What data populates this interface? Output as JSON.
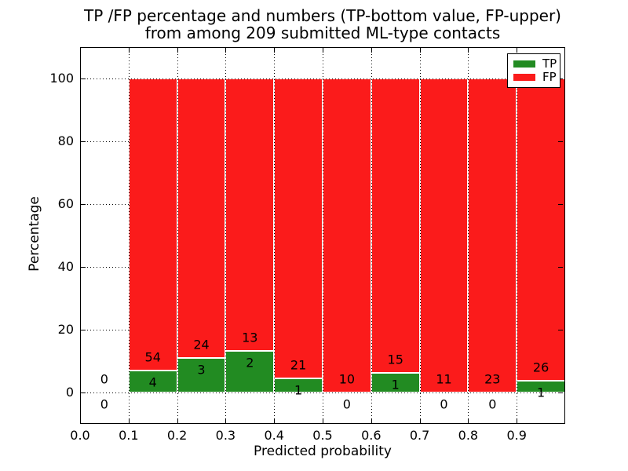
{
  "chart_data": {
    "type": "bar",
    "variant": "stacked-percentage-histogram",
    "title_line1": "TP /FP percentage and numbers (TP-bottom value, FP-upper)",
    "title_line2": "from among 209 submitted ML-type contacts",
    "xlabel": "Predicted probability",
    "ylabel": "Percentage",
    "total_contacts": 209,
    "xlim": [
      0.0,
      1.0
    ],
    "ylim": [
      -10,
      110
    ],
    "xtick_labels": [
      "0.0",
      "0.1",
      "0.2",
      "0.3",
      "0.4",
      "0.5",
      "0.6",
      "0.7",
      "0.8",
      "0.9"
    ],
    "ytick_values": [
      0,
      20,
      40,
      60,
      80,
      100
    ],
    "grid": "dotted",
    "colors": {
      "tp": "#228b22",
      "fp": "#fb1b1b",
      "bar_edge": "#ffffff",
      "grid": "#000000",
      "background": "#ffffff"
    },
    "legend": {
      "position": "upper-right",
      "entries": [
        {
          "name": "TP",
          "color_key": "tp"
        },
        {
          "name": "FP",
          "color_key": "fp"
        }
      ]
    },
    "bins": [
      {
        "x_start": 0.0,
        "x_end": 0.1,
        "tp": 0,
        "fp": 0,
        "tp_pct": 0,
        "fp_pct": 0
      },
      {
        "x_start": 0.1,
        "x_end": 0.2,
        "tp": 4,
        "fp": 54,
        "tp_pct": 6.9,
        "fp_pct": 93.1
      },
      {
        "x_start": 0.2,
        "x_end": 0.3,
        "tp": 3,
        "fp": 24,
        "tp_pct": 11.11,
        "fp_pct": 88.89
      },
      {
        "x_start": 0.3,
        "x_end": 0.4,
        "tp": 2,
        "fp": 13,
        "tp_pct": 13.33,
        "fp_pct": 86.67
      },
      {
        "x_start": 0.4,
        "x_end": 0.5,
        "tp": 1,
        "fp": 21,
        "tp_pct": 4.55,
        "fp_pct": 95.45
      },
      {
        "x_start": 0.5,
        "x_end": 0.6,
        "tp": 0,
        "fp": 10,
        "tp_pct": 0,
        "fp_pct": 100
      },
      {
        "x_start": 0.6,
        "x_end": 0.7,
        "tp": 1,
        "fp": 15,
        "tp_pct": 6.25,
        "fp_pct": 93.75
      },
      {
        "x_start": 0.7,
        "x_end": 0.8,
        "tp": 0,
        "fp": 11,
        "tp_pct": 0,
        "fp_pct": 100
      },
      {
        "x_start": 0.8,
        "x_end": 0.9,
        "tp": 0,
        "fp": 23,
        "tp_pct": 0,
        "fp_pct": 100
      },
      {
        "x_start": 0.9,
        "x_end": 1.0,
        "tp": 1,
        "fp": 26,
        "tp_pct": 3.7,
        "fp_pct": 96.3
      }
    ]
  }
}
